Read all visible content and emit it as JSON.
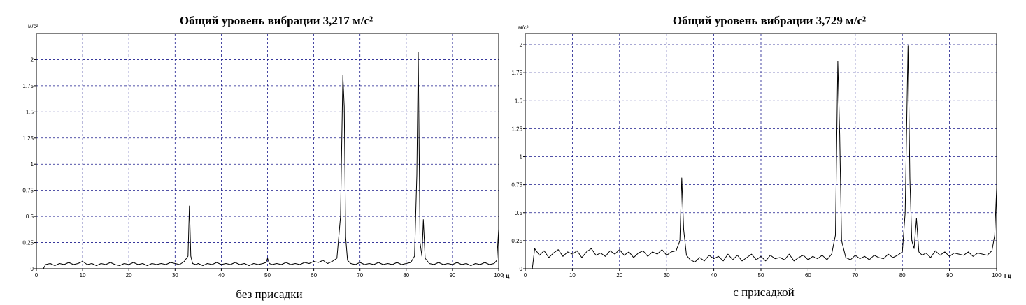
{
  "chart_data": [
    {
      "type": "line",
      "title": "Общий уровень вибрации 3,217 м/с²",
      "caption": "без присадки",
      "ylabel": "м/с²",
      "xlabel": "Гц",
      "xlim": [
        0,
        100
      ],
      "ylim": [
        0,
        2.25
      ],
      "x_ticks": [
        0,
        10,
        20,
        30,
        40,
        50,
        60,
        70,
        80,
        90,
        100
      ],
      "x_tick_labels": [
        "0",
        "10",
        "20",
        "30",
        "40",
        "50",
        "60",
        "70",
        "80",
        "90",
        "100"
      ],
      "y_ticks": [
        0,
        0.25,
        0.5,
        0.75,
        1,
        1.25,
        1.5,
        1.75,
        2
      ],
      "y_tick_labels": [
        "0",
        "0.25",
        "0.5",
        "0.75",
        "1",
        "1.25",
        "1.5",
        "1.75",
        "2"
      ],
      "grid": true,
      "series": [
        {
          "x": [
            1.5,
            2,
            3,
            4,
            5,
            6,
            7,
            8,
            9,
            10,
            11,
            12,
            13,
            14,
            15,
            16,
            17,
            18,
            19,
            20,
            21,
            22,
            23,
            24,
            25,
            26,
            27,
            28,
            29,
            30,
            31,
            32,
            32.8,
            33.1,
            33.4,
            33.8,
            34.5,
            35,
            36,
            37,
            38,
            39,
            40,
            41,
            42,
            43,
            44,
            45,
            46,
            47,
            48,
            49,
            49.7,
            50,
            50.4,
            51,
            52,
            53,
            54,
            55,
            56,
            57,
            58,
            59,
            60,
            61,
            62,
            63,
            64,
            65,
            65.8,
            66.3,
            66.6,
            66.9,
            67.3,
            68,
            69,
            70,
            71,
            72,
            73,
            74,
            75,
            76,
            77,
            78,
            79,
            80,
            81,
            81.8,
            82.3,
            82.6,
            83,
            83.4,
            83.7,
            84.1,
            85,
            86,
            87,
            88,
            89,
            90,
            91,
            92,
            93,
            94,
            95,
            96,
            97,
            98,
            99,
            99.6,
            100
          ],
          "y": [
            0.0,
            0.04,
            0.05,
            0.03,
            0.05,
            0.04,
            0.06,
            0.04,
            0.05,
            0.07,
            0.04,
            0.05,
            0.03,
            0.05,
            0.04,
            0.06,
            0.04,
            0.03,
            0.05,
            0.04,
            0.06,
            0.04,
            0.05,
            0.03,
            0.05,
            0.04,
            0.05,
            0.04,
            0.06,
            0.05,
            0.04,
            0.07,
            0.12,
            0.6,
            0.12,
            0.05,
            0.04,
            0.05,
            0.03,
            0.05,
            0.04,
            0.06,
            0.04,
            0.05,
            0.04,
            0.06,
            0.04,
            0.05,
            0.03,
            0.05,
            0.04,
            0.05,
            0.06,
            0.1,
            0.05,
            0.04,
            0.05,
            0.04,
            0.06,
            0.04,
            0.05,
            0.04,
            0.06,
            0.05,
            0.07,
            0.06,
            0.08,
            0.05,
            0.07,
            0.1,
            0.5,
            1.85,
            1.55,
            0.3,
            0.08,
            0.05,
            0.04,
            0.06,
            0.04,
            0.05,
            0.04,
            0.06,
            0.04,
            0.05,
            0.04,
            0.06,
            0.04,
            0.05,
            0.06,
            0.12,
            0.9,
            2.07,
            0.25,
            0.12,
            0.47,
            0.1,
            0.05,
            0.04,
            0.06,
            0.04,
            0.05,
            0.04,
            0.06,
            0.04,
            0.05,
            0.03,
            0.05,
            0.04,
            0.06,
            0.04,
            0.05,
            0.08,
            0.38
          ]
        }
      ]
    },
    {
      "type": "line",
      "title": "Общий уровень вибрации 3,729 м/с²",
      "caption": "с присадкой",
      "ylabel": "м/с²",
      "xlabel": "Гц",
      "xlim": [
        0,
        100
      ],
      "ylim": [
        0,
        2.1
      ],
      "x_ticks": [
        0,
        10,
        20,
        30,
        40,
        50,
        60,
        70,
        80,
        90,
        100
      ],
      "x_tick_labels": [
        "0",
        "10",
        "20",
        "30",
        "40",
        "50",
        "60",
        "70",
        "80",
        "90",
        "100"
      ],
      "y_ticks": [
        0,
        0.25,
        0.5,
        0.75,
        1,
        1.25,
        1.5,
        1.75,
        2
      ],
      "y_tick_labels": [
        "0",
        "0.25",
        "0.5",
        "0.75",
        "1",
        "1.25",
        "1.5",
        "1.75",
        "2"
      ],
      "grid": true,
      "series": [
        {
          "x": [
            1.5,
            2,
            3,
            4,
            5,
            6,
            7,
            8,
            9,
            10,
            11,
            12,
            13,
            14,
            15,
            16,
            17,
            18,
            19,
            20,
            21,
            22,
            23,
            24,
            25,
            26,
            27,
            28,
            29,
            30,
            31,
            32,
            32.8,
            33.2,
            33.6,
            34.2,
            35,
            36,
            37,
            38,
            39,
            40,
            41,
            42,
            43,
            44,
            45,
            46,
            47,
            48,
            49,
            50,
            51,
            52,
            53,
            54,
            55,
            56,
            57,
            58,
            59,
            60,
            61,
            62,
            63,
            64,
            65,
            65.8,
            66.3,
            66.7,
            67.1,
            68,
            69,
            70,
            71,
            72,
            73,
            74,
            75,
            76,
            77,
            78,
            79,
            80,
            80.6,
            81.2,
            81.6,
            82,
            82.5,
            83,
            83.5,
            84.2,
            85,
            86,
            87,
            88,
            89,
            90,
            91,
            92,
            93,
            94,
            95,
            96,
            97,
            98,
            99,
            99.6,
            100
          ],
          "y": [
            0.0,
            0.18,
            0.12,
            0.16,
            0.1,
            0.14,
            0.17,
            0.11,
            0.15,
            0.13,
            0.16,
            0.1,
            0.15,
            0.18,
            0.12,
            0.14,
            0.11,
            0.16,
            0.13,
            0.17,
            0.12,
            0.15,
            0.1,
            0.14,
            0.16,
            0.11,
            0.15,
            0.13,
            0.17,
            0.12,
            0.15,
            0.16,
            0.25,
            0.81,
            0.35,
            0.12,
            0.08,
            0.06,
            0.1,
            0.07,
            0.12,
            0.09,
            0.11,
            0.07,
            0.13,
            0.08,
            0.12,
            0.07,
            0.1,
            0.13,
            0.08,
            0.11,
            0.07,
            0.12,
            0.09,
            0.1,
            0.08,
            0.13,
            0.07,
            0.1,
            0.12,
            0.08,
            0.11,
            0.09,
            0.12,
            0.08,
            0.13,
            0.3,
            1.85,
            1.2,
            0.25,
            0.1,
            0.08,
            0.12,
            0.09,
            0.11,
            0.08,
            0.12,
            0.1,
            0.09,
            0.13,
            0.1,
            0.12,
            0.15,
            0.5,
            1.99,
            0.8,
            0.25,
            0.18,
            0.45,
            0.15,
            0.12,
            0.14,
            0.1,
            0.16,
            0.12,
            0.15,
            0.11,
            0.14,
            0.13,
            0.12,
            0.15,
            0.11,
            0.14,
            0.13,
            0.12,
            0.16,
            0.3,
            0.72
          ]
        }
      ]
    }
  ]
}
